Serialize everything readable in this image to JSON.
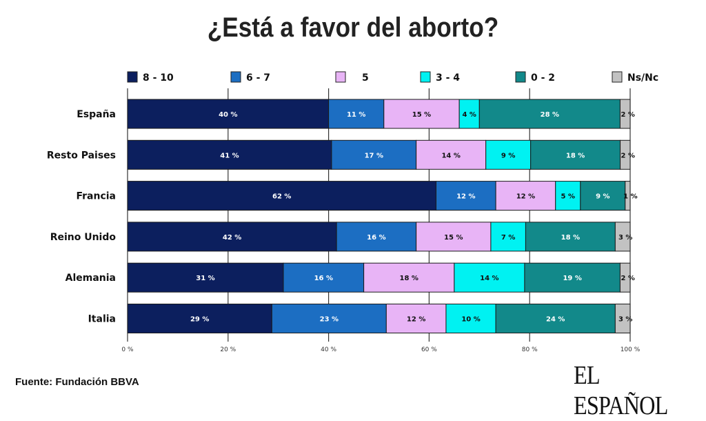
{
  "chart_data": {
    "type": "bar",
    "orientation": "horizontal",
    "stacked": true,
    "title": "¿Está a favor del aborto?",
    "categories": [
      "España",
      "Resto Paises",
      "Francia",
      "Reino Unido",
      "Alemania",
      "Italia"
    ],
    "series": [
      {
        "name": "8 - 10",
        "color": "#0c1f5e",
        "label_color": "#ffffff",
        "values": [
          40,
          41,
          62,
          42,
          31,
          29
        ]
      },
      {
        "name": "6 - 7",
        "color": "#1c6ec2",
        "label_color": "#ffffff",
        "values": [
          11,
          17,
          12,
          16,
          16,
          23
        ]
      },
      {
        "name": "5",
        "color": "#e8b4f6",
        "label_color": "#111111",
        "values": [
          15,
          14,
          12,
          15,
          18,
          12
        ]
      },
      {
        "name": "3 - 4",
        "color": "#00f2f2",
        "label_color": "#111111",
        "values": [
          4,
          9,
          5,
          7,
          14,
          10
        ]
      },
      {
        "name": "0 - 2",
        "color": "#12898a",
        "label_color": "#ffffff",
        "values": [
          28,
          18,
          9,
          18,
          19,
          24
        ]
      },
      {
        "name": "Ns/Nc",
        "color": "#c2c2c2",
        "label_color": "#111111",
        "values": [
          2,
          2,
          1,
          3,
          2,
          3
        ]
      }
    ],
    "value_suffix": " %",
    "xlim": [
      0,
      100
    ],
    "xticks": [
      "0 %",
      "20 %",
      "40 %",
      "60 %",
      "80 %",
      "100 %"
    ],
    "grid": true,
    "legend": "top"
  },
  "source": "Fuente: Fundación BBVA",
  "logo": "EL ESPAÑOL"
}
